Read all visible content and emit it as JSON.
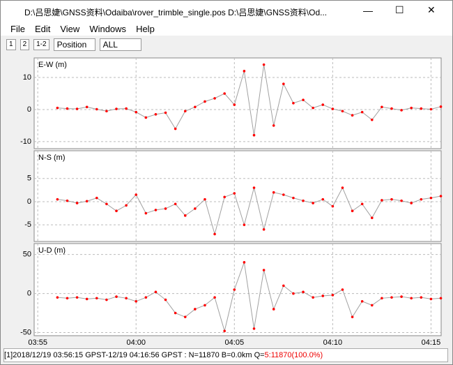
{
  "window": {
    "title": "D:\\吕思婕\\GNSS资料\\Odaiba\\rover_trimble_single.pos D:\\吕思婕\\GNSS资料\\Od...",
    "menu": [
      "File",
      "Edit",
      "View",
      "Windows",
      "Help"
    ],
    "toolbar": [
      "1",
      "2",
      "1-2",
      "Position",
      "ALL"
    ],
    "status": "[1]2018/12/19 03:56:15 GPST-12/19 04:16:56 GPST : N=11870 B=0.0km Q=",
    "status_q": "5:11870(100.0%)"
  },
  "chart_data": [
    {
      "type": "line",
      "ylabel": "E-W (m)",
      "color": "#ff0000",
      "line_color": "#a0a0a0",
      "x": [
        "03:56:00",
        "03:56:30",
        "03:57:00",
        "03:57:30",
        "03:58:00",
        "03:58:30",
        "03:59:00",
        "03:59:30",
        "04:00:00",
        "04:00:30",
        "04:01:00",
        "04:01:30",
        "04:02:00",
        "04:02:30",
        "04:03:00",
        "04:03:30",
        "04:04:00",
        "04:04:30",
        "04:05:00",
        "04:05:30",
        "04:06:00",
        "04:06:30",
        "04:07:00",
        "04:07:30",
        "04:08:00",
        "04:08:30",
        "04:09:00",
        "04:09:30",
        "04:10:00",
        "04:10:30",
        "04:11:00",
        "04:11:30",
        "04:12:00",
        "04:12:30",
        "04:13:00",
        "04:13:30",
        "04:14:00",
        "04:14:30",
        "04:15:00",
        "04:15:30"
      ],
      "values": [
        0.5,
        0.3,
        0.2,
        0.8,
        0.1,
        -0.5,
        0.2,
        0.3,
        -0.8,
        -2.5,
        -1.5,
        -1.0,
        -6,
        -0.5,
        0.8,
        2.5,
        3.5,
        5.0,
        1.5,
        12,
        -8,
        14,
        -5,
        8,
        2,
        3,
        0.5,
        1.5,
        0.2,
        -0.5,
        -1.8,
        -0.8,
        -3.2,
        0.8,
        0.3,
        -0.2,
        0.5,
        0.3,
        0.1,
        0.9
      ],
      "ylim": [
        -12.2,
        16.1
      ],
      "yticks": [
        -10,
        0,
        10
      ],
      "xlim": [
        "03:54:49",
        "04:15:31"
      ],
      "xticks": [
        "03:55",
        "04:00",
        "04:05",
        "04:10",
        "04:15"
      ]
    },
    {
      "type": "line",
      "ylabel": "N-S (m)",
      "color": "#ff0000",
      "line_color": "#a0a0a0",
      "x": [
        "03:56:00",
        "03:56:30",
        "03:57:00",
        "03:57:30",
        "03:58:00",
        "03:58:30",
        "03:59:00",
        "03:59:30",
        "04:00:00",
        "04:00:30",
        "04:01:00",
        "04:01:30",
        "04:02:00",
        "04:02:30",
        "04:03:00",
        "04:03:30",
        "04:04:00",
        "04:04:30",
        "04:05:00",
        "04:05:30",
        "04:06:00",
        "04:06:30",
        "04:07:00",
        "04:07:30",
        "04:08:00",
        "04:08:30",
        "04:09:00",
        "04:09:30",
        "04:10:00",
        "04:10:30",
        "04:11:00",
        "04:11:30",
        "04:12:00",
        "04:12:30",
        "04:13:00",
        "04:13:30",
        "04:14:00",
        "04:14:30",
        "04:15:00",
        "04:15:30"
      ],
      "values": [
        0.5,
        0.2,
        -0.3,
        0.1,
        0.8,
        -0.5,
        -2.0,
        -0.8,
        1.5,
        -2.5,
        -1.8,
        -1.5,
        -0.5,
        -3,
        -1.5,
        0.5,
        -7,
        1.0,
        1.8,
        -5,
        3,
        -6,
        2,
        1.5,
        0.8,
        0.2,
        -0.3,
        0.5,
        -1.0,
        3,
        -2,
        -0.5,
        -3.5,
        0.3,
        0.5,
        0.2,
        -0.3,
        0.5,
        0.8,
        1.2
      ],
      "ylim": [
        -8.6,
        11
      ],
      "yticks": [
        -5,
        0,
        5
      ],
      "xlim": [
        "03:54:49",
        "04:15:31"
      ],
      "xticks": [
        "03:55",
        "04:00",
        "04:05",
        "04:10",
        "04:15"
      ]
    },
    {
      "type": "line",
      "ylabel": "U-D (m)",
      "color": "#ff0000",
      "line_color": "#a0a0a0",
      "x": [
        "03:56:00",
        "03:56:30",
        "03:57:00",
        "03:57:30",
        "03:58:00",
        "03:58:30",
        "03:59:00",
        "03:59:30",
        "04:00:00",
        "04:00:30",
        "04:01:00",
        "04:01:30",
        "04:02:00",
        "04:02:30",
        "04:03:00",
        "04:03:30",
        "04:04:00",
        "04:04:30",
        "04:05:00",
        "04:05:30",
        "04:06:00",
        "04:06:30",
        "04:07:00",
        "04:07:30",
        "04:08:00",
        "04:08:30",
        "04:09:00",
        "04:09:30",
        "04:10:00",
        "04:10:30",
        "04:11:00",
        "04:11:30",
        "04:12:00",
        "04:12:30",
        "04:13:00",
        "04:13:30",
        "04:14:00",
        "04:14:30",
        "04:15:00",
        "04:15:30"
      ],
      "values": [
        -5,
        -6,
        -5,
        -7,
        -6,
        -8,
        -4,
        -6,
        -10,
        -5,
        2,
        -8,
        -25,
        -30,
        -20,
        -15,
        -5,
        -48,
        5,
        40,
        -45,
        30,
        -20,
        10,
        0,
        2,
        -5,
        -3,
        -2,
        5,
        -30,
        -10,
        -15,
        -6,
        -5,
        -4,
        -6,
        -5,
        -7,
        -6
      ],
      "ylim": [
        -54,
        64
      ],
      "yticks": [
        -50,
        0,
        50
      ],
      "xlim": [
        "03:54:49",
        "04:15:31"
      ],
      "xticks": [
        "03:55",
        "04:00",
        "04:05",
        "04:10",
        "04:15"
      ]
    }
  ]
}
